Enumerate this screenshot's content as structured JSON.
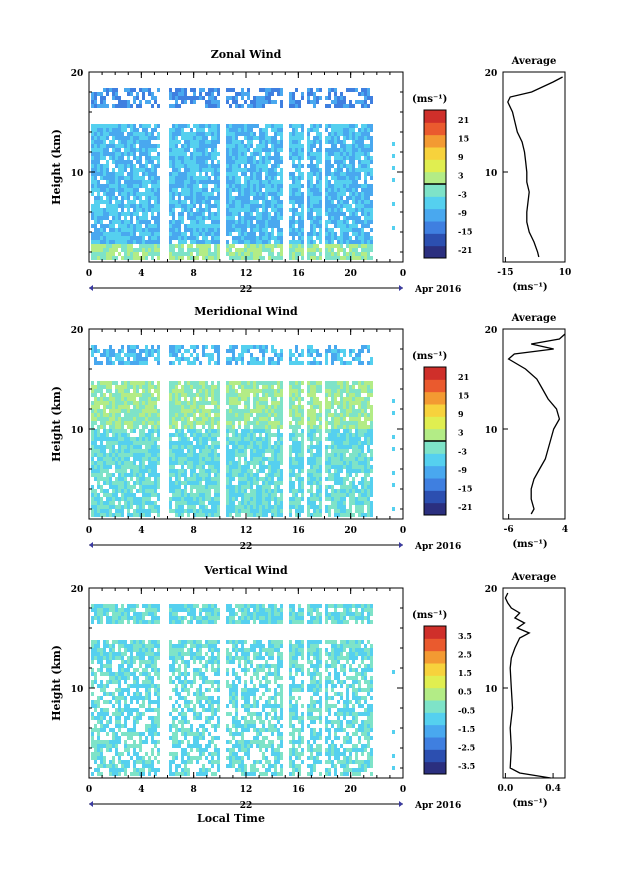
{
  "figure": {
    "date_label": "Apr 2016",
    "day_label": "22",
    "xlabel": "Local Time",
    "ylabel": "Height (km)",
    "avg_title": "Average",
    "colorbar_unit": "(ms⁻¹)"
  },
  "colors": {
    "scale": [
      "#2b2f7f",
      "#2c4fb0",
      "#3f7fe0",
      "#49a8ef",
      "#55d0ef",
      "#7ee3c8",
      "#b3ec86",
      "#e0ee50",
      "#f7d23c",
      "#f39a32",
      "#ea5a2e",
      "#cf2f2a"
    ]
  },
  "chart_data": [
    {
      "type": "heatmap",
      "title": "Zonal Wind",
      "xlabel": "Local Time",
      "ylabel": "Height (km)",
      "x_ticks": [
        "0",
        "4",
        "8",
        "12",
        "16",
        "20",
        "0"
      ],
      "y_ticks": [
        "20",
        "10"
      ],
      "xlim": [
        0,
        24
      ],
      "ylim": [
        1,
        20
      ],
      "colorbar": {
        "unit": "(ms⁻¹)",
        "ticks": [
          "21",
          "15",
          "9",
          "3",
          "-3",
          "-9",
          "-15",
          "-21"
        ],
        "range": [
          -24,
          24
        ]
      },
      "data_gaps_hours": [
        [
          5.2,
          6.0
        ],
        [
          9.8,
          10.4
        ],
        [
          14.8,
          15.2
        ],
        [
          16.3,
          16.6
        ],
        [
          17.6,
          18.0
        ],
        [
          21.5,
          23.7
        ]
      ],
      "profile": {
        "title": "Average",
        "xlabel": "(ms⁻¹)",
        "x_ticks": [
          "-15",
          "10"
        ],
        "y_ticks": [
          "20",
          "10"
        ],
        "xlim": [
          -16,
          10
        ],
        "height_km": [
          1.5,
          2,
          3,
          4,
          5,
          6,
          7,
          8,
          9,
          10,
          11,
          12,
          13,
          14,
          15,
          16,
          17,
          17.5,
          18,
          19,
          19.5
        ],
        "value": [
          -1,
          -1.5,
          -3,
          -5,
          -6,
          -6,
          -5.5,
          -5,
          -6,
          -6,
          -6.5,
          -7,
          -8,
          -10,
          -11,
          -12,
          -14,
          -13,
          -4,
          5,
          9
        ]
      }
    },
    {
      "type": "heatmap",
      "title": "Meridional Wind",
      "xlabel": "Local Time",
      "ylabel": "Height (km)",
      "x_ticks": [
        "0",
        "4",
        "8",
        "12",
        "16",
        "20",
        "0"
      ],
      "y_ticks": [
        "20",
        "10"
      ],
      "xlim": [
        0,
        24
      ],
      "ylim": [
        1,
        20
      ],
      "colorbar": {
        "unit": "(ms⁻¹)",
        "ticks": [
          "21",
          "15",
          "9",
          "3",
          "-3",
          "-9",
          "-15",
          "-21"
        ],
        "range": [
          -24,
          24
        ]
      },
      "data_gaps_hours": [
        [
          5.2,
          6.0
        ],
        [
          9.8,
          10.4
        ],
        [
          14.8,
          15.2
        ],
        [
          16.3,
          16.6
        ],
        [
          17.6,
          18.0
        ],
        [
          21.5,
          23.7
        ]
      ],
      "profile": {
        "title": "Average",
        "xlabel": "(ms⁻¹)",
        "x_ticks": [
          "-6",
          "4"
        ],
        "y_ticks": [
          "20",
          "10"
        ],
        "xlim": [
          -7,
          4
        ],
        "height_km": [
          1.5,
          2,
          3,
          4,
          5,
          6,
          7,
          8,
          9,
          10,
          11,
          12,
          13,
          14,
          15,
          16,
          17,
          17.5,
          18,
          18.5,
          19,
          19.5
        ],
        "value": [
          -2,
          -1.5,
          -2,
          -2,
          -1.5,
          -0.5,
          0.5,
          1,
          1.5,
          2,
          3,
          2.5,
          1,
          0,
          -1,
          -3,
          -6,
          -5,
          2,
          -2,
          3,
          4
        ]
      }
    },
    {
      "type": "heatmap",
      "title": "Vertical Wind",
      "xlabel": "Local Time",
      "ylabel": "Height (km)",
      "x_ticks": [
        "0",
        "4",
        "8",
        "12",
        "16",
        "20",
        "0"
      ],
      "y_ticks": [
        "20",
        "10"
      ],
      "xlim": [
        0,
        24
      ],
      "ylim": [
        1,
        20
      ],
      "colorbar": {
        "unit": "(ms⁻¹)",
        "ticks": [
          "3.5",
          "2.5",
          "1.5",
          "0.5",
          "-0.5",
          "-1.5",
          "-2.5",
          "-3.5"
        ],
        "range": [
          -4,
          4
        ]
      },
      "data_gaps_hours": [
        [
          5.2,
          6.0
        ],
        [
          9.8,
          10.4
        ],
        [
          14.8,
          15.2
        ],
        [
          16.3,
          16.6
        ],
        [
          17.6,
          18.0
        ],
        [
          21.5,
          23.7
        ]
      ],
      "profile": {
        "title": "Average",
        "xlabel": "(ms⁻¹)",
        "x_ticks": [
          "0.0",
          "0.4"
        ],
        "y_ticks": [
          "20",
          "10"
        ],
        "xlim": [
          -0.02,
          0.5
        ],
        "height_km": [
          1,
          1.5,
          2,
          4,
          6,
          8,
          10,
          12,
          13,
          14,
          15,
          15.5,
          16,
          16.5,
          17,
          17.5,
          18,
          18.5,
          19,
          19.5
        ],
        "value": [
          0.38,
          0.12,
          0.04,
          0.05,
          0.04,
          0.06,
          0.05,
          0.04,
          0.05,
          0.08,
          0.12,
          0.2,
          0.1,
          0.16,
          0.08,
          0.12,
          0.05,
          0.02,
          0.0,
          0.02
        ]
      }
    }
  ]
}
